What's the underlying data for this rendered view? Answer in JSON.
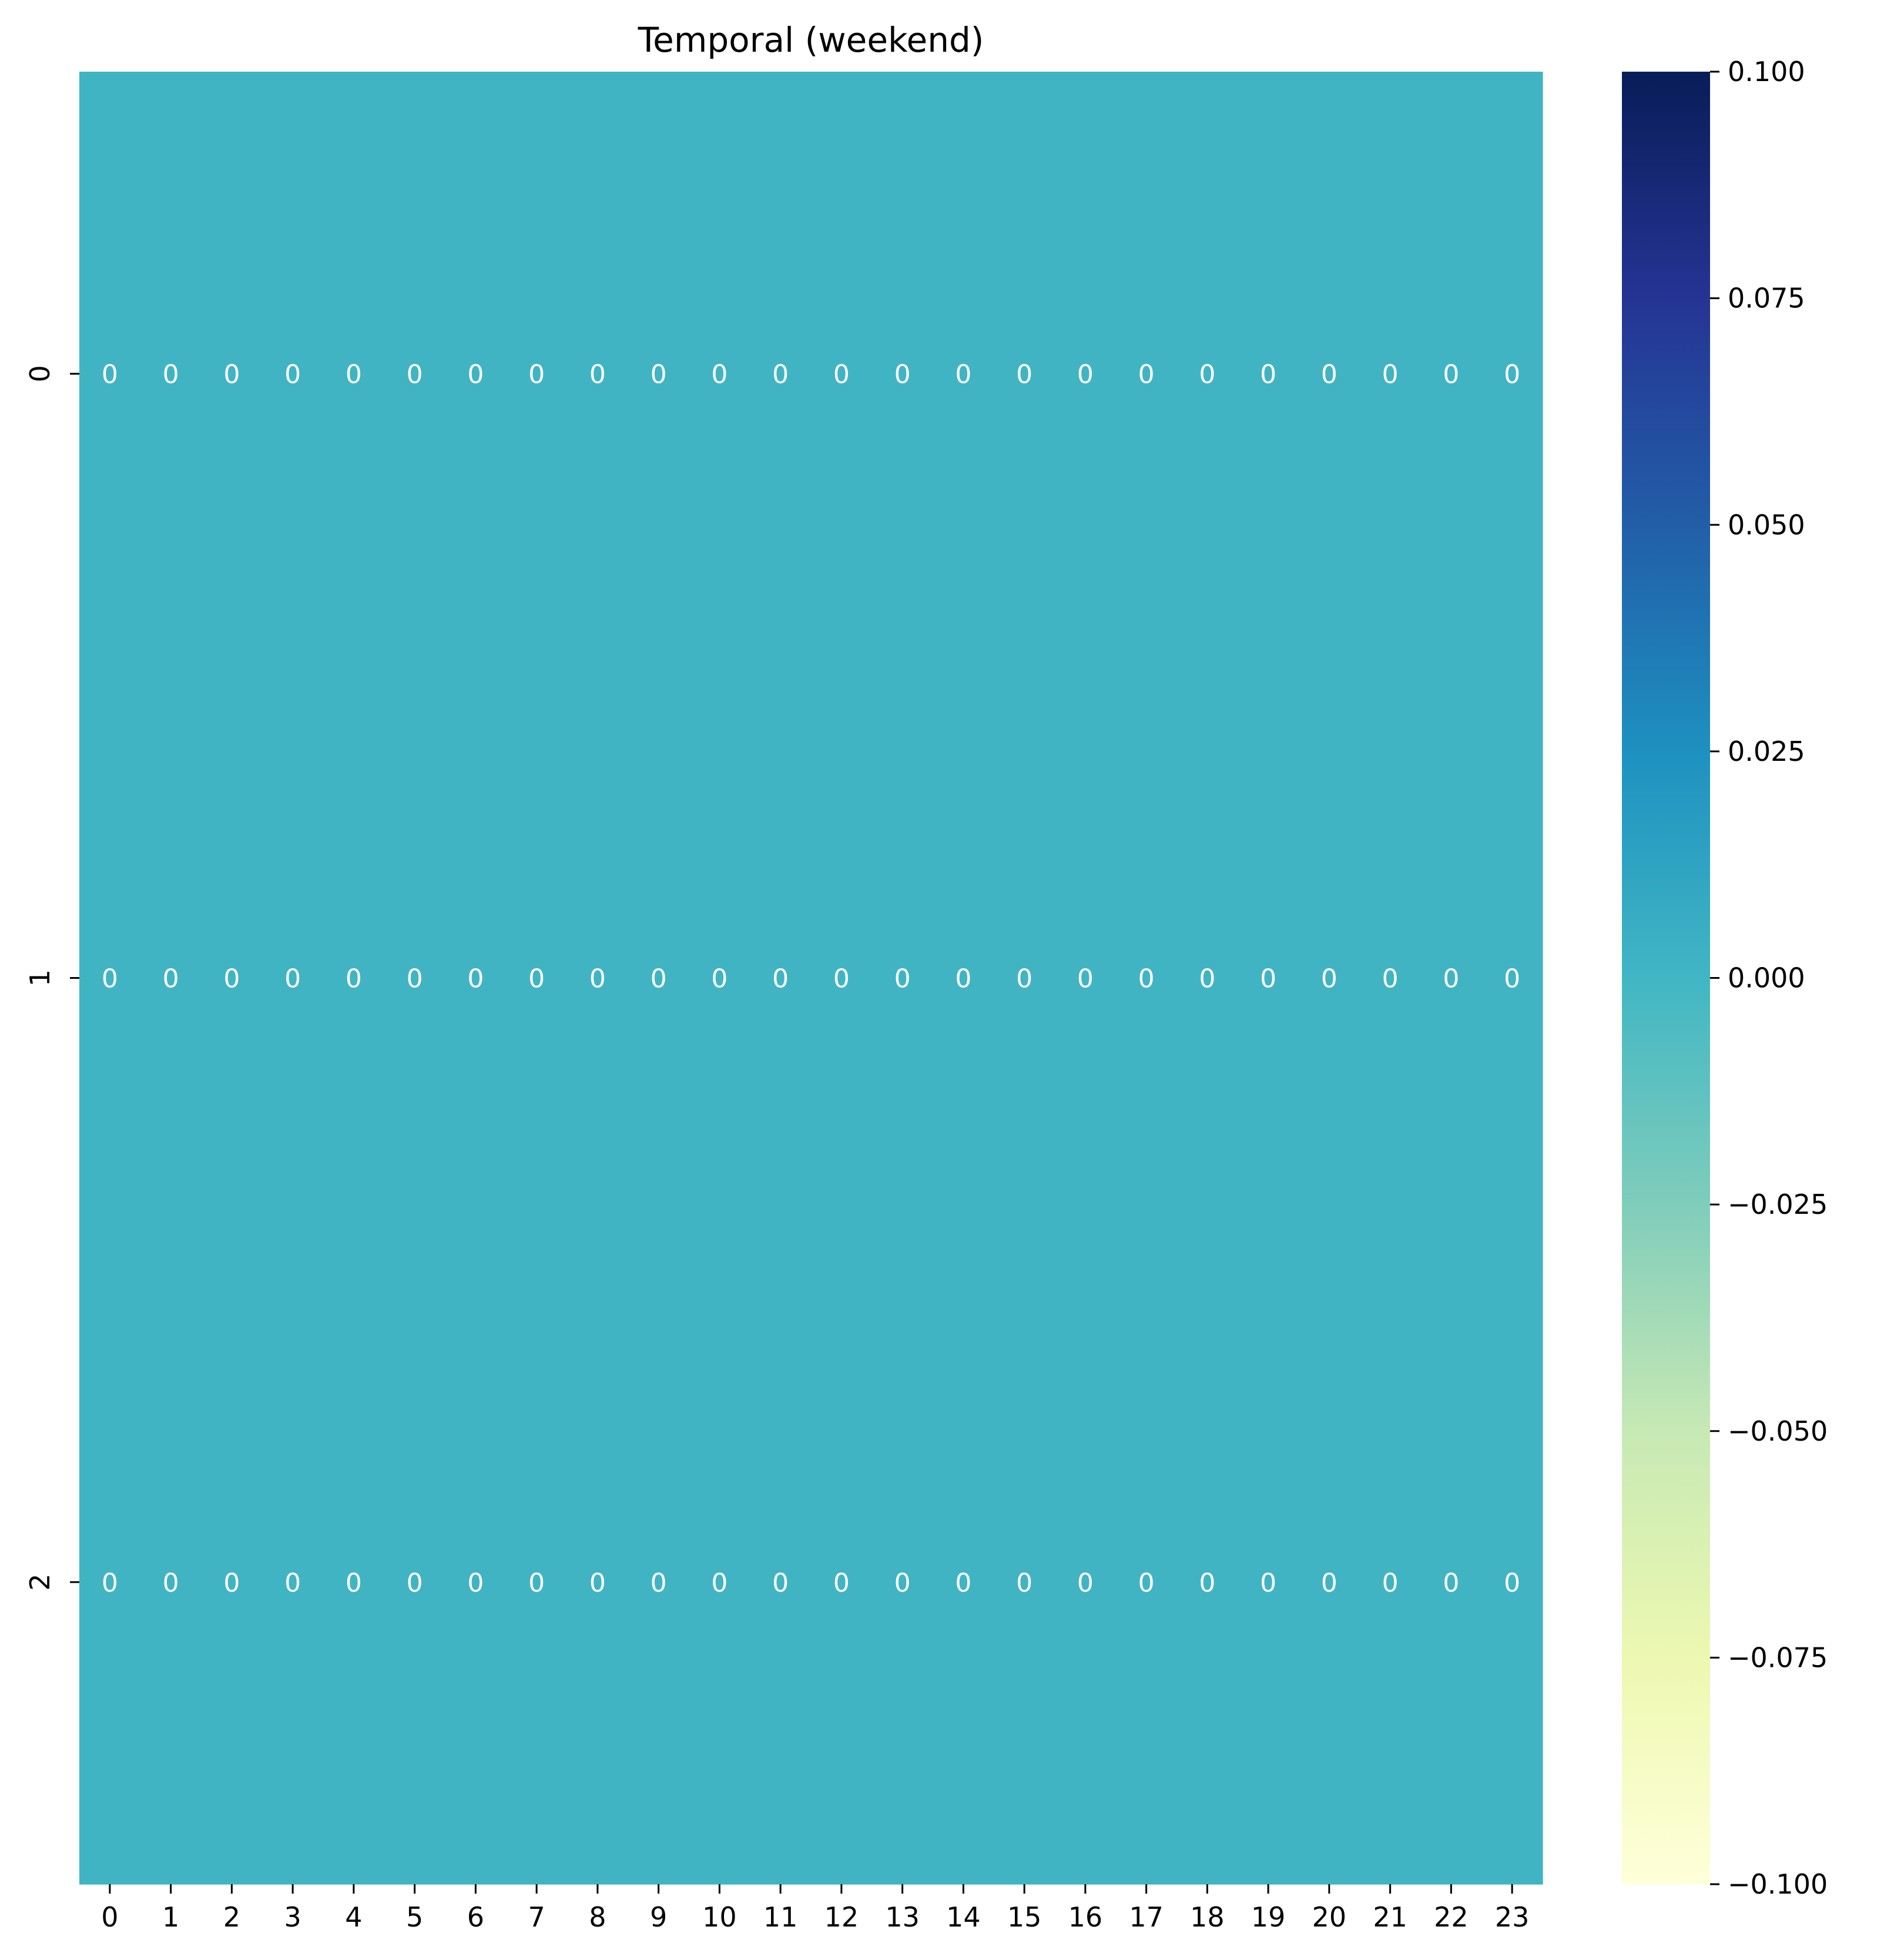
{
  "chart_data": {
    "type": "heatmap",
    "title": "Temporal (weekend)",
    "xlabel": "",
    "ylabel": "",
    "x_tick_labels": [
      "0",
      "1",
      "2",
      "3",
      "4",
      "5",
      "6",
      "7",
      "8",
      "9",
      "10",
      "11",
      "12",
      "13",
      "14",
      "15",
      "16",
      "17",
      "18",
      "19",
      "20",
      "21",
      "22",
      "23"
    ],
    "y_tick_labels": [
      "0",
      "1",
      "2"
    ],
    "values": [
      [
        0,
        0,
        0,
        0,
        0,
        0,
        0,
        0,
        0,
        0,
        0,
        0,
        0,
        0,
        0,
        0,
        0,
        0,
        0,
        0,
        0,
        0,
        0,
        0
      ],
      [
        0,
        0,
        0,
        0,
        0,
        0,
        0,
        0,
        0,
        0,
        0,
        0,
        0,
        0,
        0,
        0,
        0,
        0,
        0,
        0,
        0,
        0,
        0,
        0
      ],
      [
        0,
        0,
        0,
        0,
        0,
        0,
        0,
        0,
        0,
        0,
        0,
        0,
        0,
        0,
        0,
        0,
        0,
        0,
        0,
        0,
        0,
        0,
        0,
        0
      ]
    ],
    "colorbar": {
      "colormap": "YlGnBu",
      "vmin": -0.1,
      "vmax": 0.1,
      "tick_values": [
        -0.1,
        -0.075,
        -0.05,
        -0.025,
        0.0,
        0.025,
        0.05,
        0.075,
        0.1
      ],
      "tick_labels": [
        "−0.100",
        "−0.075",
        "−0.050",
        "−0.025",
        "0.000",
        "0.025",
        "0.050",
        "0.075",
        "0.100"
      ],
      "stops": [
        "#ffffd9",
        "#edf8b1",
        "#c7e9b4",
        "#7fcdbb",
        "#41b6c4",
        "#1d91c0",
        "#225ea8",
        "#253494",
        "#081d58"
      ]
    },
    "cell_color": "#41b4c4",
    "annotation_color": "#ffffff",
    "grid": false
  }
}
